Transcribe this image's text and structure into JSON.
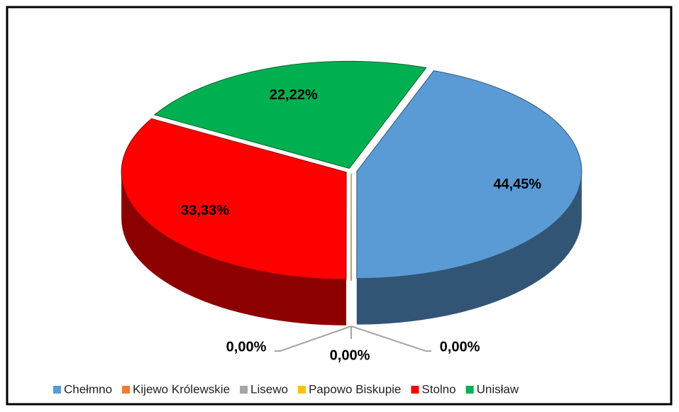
{
  "chart_data": {
    "type": "pie3d",
    "categories": [
      "Chełmno",
      "Kijewo Królewskie",
      "Lisewo",
      "Papowo Biskupie",
      "Stolno",
      "Unisław"
    ],
    "values": [
      44.45,
      0,
      0,
      0,
      33.33,
      22.22
    ],
    "value_labels": [
      "44,45%",
      "0,00%",
      "0,00%",
      "0,00%",
      "33,33%",
      "22,22%"
    ],
    "colors": [
      "#5b9bd5",
      "#ed7d31",
      "#a5a5a5",
      "#ffc000",
      "#ff0000",
      "#00b050"
    ],
    "legend": "bottom"
  }
}
